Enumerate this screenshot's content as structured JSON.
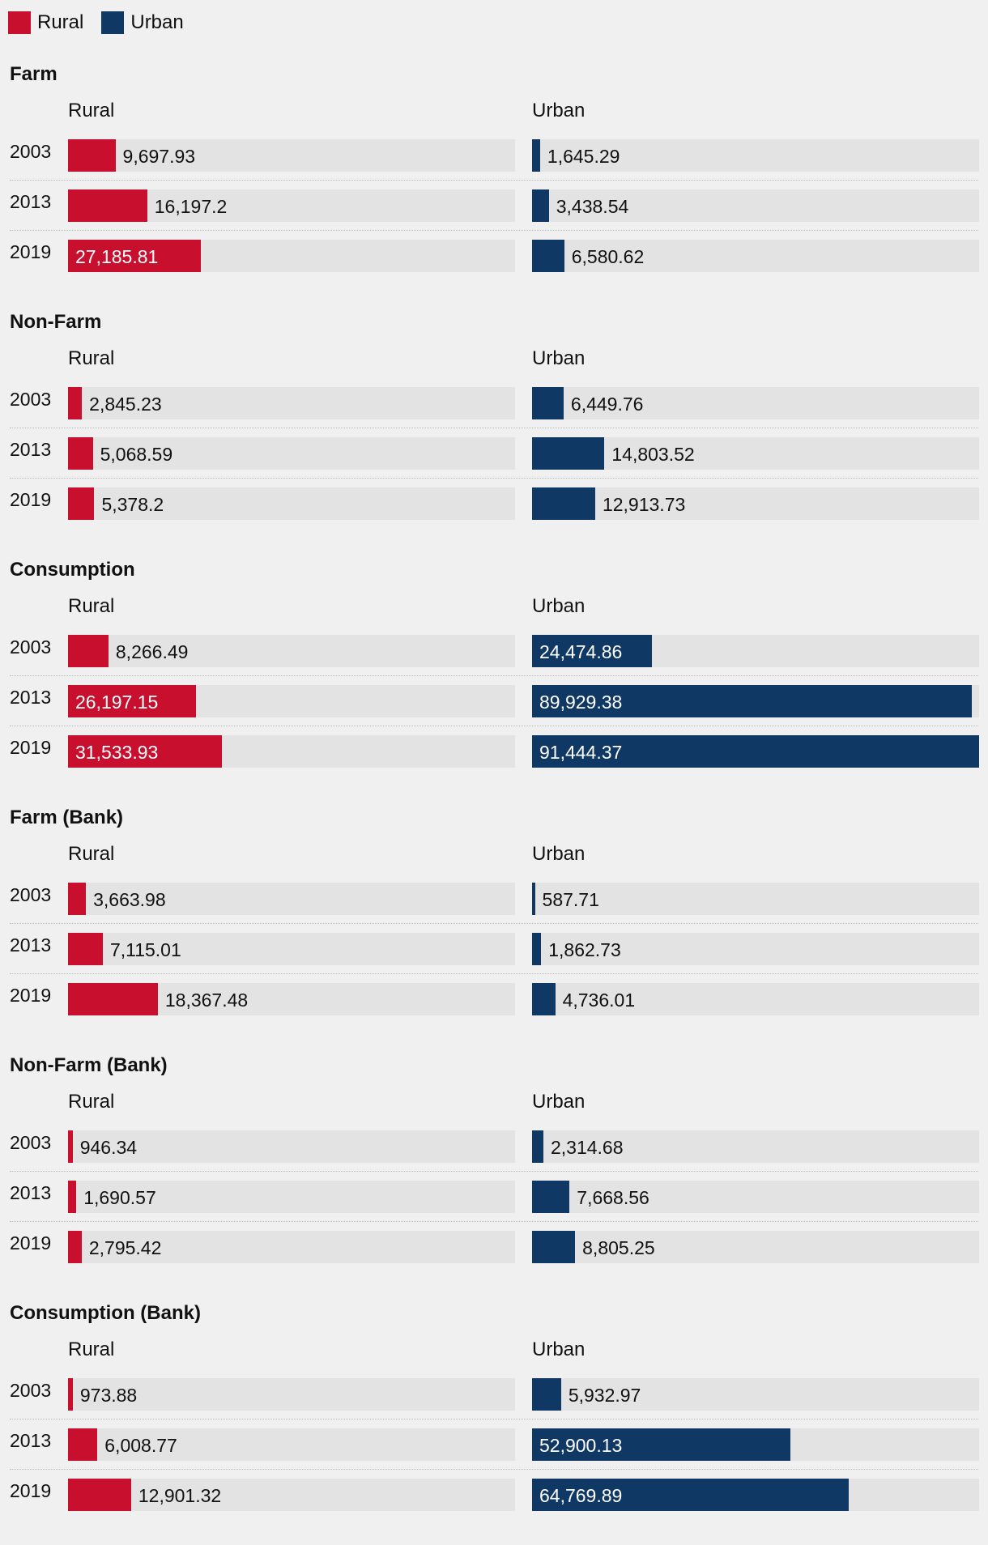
{
  "legend": [
    {
      "label": "Rural",
      "color": "#c8102e"
    },
    {
      "label": "Urban",
      "color": "#0f3864"
    }
  ],
  "chart_data": {
    "type": "bar",
    "orientation": "horizontal",
    "column_labels": [
      "Rural",
      "Urban"
    ],
    "colors": {
      "Rural": "#c8102e",
      "Urban": "#0f3864"
    },
    "years": [
      "2003",
      "2013",
      "2019"
    ],
    "xlim": [
      0,
      91444.37
    ],
    "panels": [
      {
        "title": "Farm",
        "rural": [
          9697.93,
          16197.2,
          27185.81
        ],
        "urban": [
          1645.29,
          3438.54,
          6580.62
        ]
      },
      {
        "title": "Non-Farm",
        "rural": [
          2845.23,
          5068.59,
          5378.2
        ],
        "urban": [
          6449.76,
          14803.52,
          12913.73
        ]
      },
      {
        "title": "Consumption",
        "rural": [
          8266.49,
          26197.15,
          31533.93
        ],
        "urban": [
          24474.86,
          89929.38,
          91444.37
        ]
      },
      {
        "title": "Farm (Bank)",
        "rural": [
          3663.98,
          7115.01,
          18367.48
        ],
        "urban": [
          587.71,
          1862.73,
          4736.01
        ]
      },
      {
        "title": "Non-Farm (Bank)",
        "rural": [
          946.34,
          1690.57,
          2795.42
        ],
        "urban": [
          2314.68,
          7668.56,
          8805.25
        ]
      },
      {
        "title": "Consumption (Bank)",
        "rural": [
          973.88,
          6008.77,
          12901.32
        ],
        "urban": [
          5932.97,
          52900.13,
          64769.89
        ]
      }
    ]
  }
}
